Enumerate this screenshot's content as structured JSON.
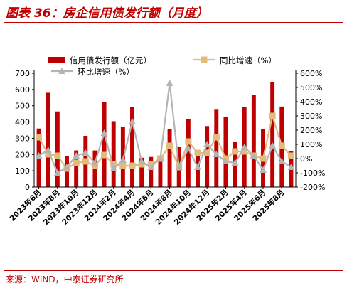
{
  "title": "图表 36：房企信用债发行额（月度）",
  "source": "来源：WIND，中泰证券研究所",
  "colors": {
    "bar": "#c00000",
    "yoy": "#e2bc7c",
    "mom": "#b4b4b4",
    "accent": "#c00000"
  },
  "chart_data": {
    "type": "bar",
    "categories": [
      "2023年6月",
      "2023年7月",
      "2023年8月",
      "2023年9月",
      "2023年10月",
      "2023年11月",
      "2023年12月",
      "2024年1月",
      "2024年2月",
      "2024年3月",
      "2024年4月",
      "2024年5月",
      "2024年6月",
      "2024年7月",
      "2024年8月",
      "2024年9月",
      "2024年10月",
      "2024年11月",
      "2024年12月",
      "2025年1月",
      "2025年2月",
      "2025年3月",
      "2025年4月",
      "2025年5月",
      "2025年6月",
      "2025年7月",
      "2025年8月",
      "2025年9月"
    ],
    "x_tick_labels": [
      "2023年6月",
      "2023年8月",
      "2023年10月",
      "2023年12月",
      "2024年2月",
      "2024年4月",
      "2024年6月",
      "2024年8月",
      "2024年10月",
      "2024年12月",
      "2025年2月",
      "2025年4月",
      "2025年6月",
      "2025年8月"
    ],
    "series": [
      {
        "name": "信用债发行额（亿元）",
        "type": "bar",
        "axis": "left",
        "values": [
          360,
          580,
          465,
          190,
          225,
          315,
          225,
          525,
          405,
          370,
          490,
          180,
          185,
          160,
          355,
          245,
          420,
          195,
          375,
          480,
          430,
          280,
          490,
          565,
          355,
          645,
          495,
          220
        ]
      },
      {
        "name": "同比增速（%）",
        "type": "line",
        "axis": "right",
        "values": [
          150,
          30,
          20,
          -70,
          -30,
          -20,
          -50,
          25,
          -40,
          -50,
          -50,
          -40,
          -40,
          0,
          90,
          -60,
          120,
          40,
          40,
          150,
          0,
          50,
          50,
          20,
          0,
          300,
          90,
          20
        ]
      },
      {
        "name": "环比增速（%）",
        "type": "line",
        "axis": "right",
        "values": [
          20,
          60,
          -100,
          -60,
          20,
          40,
          -30,
          180,
          -70,
          -10,
          260,
          -20,
          -60,
          0,
          530,
          -60,
          70,
          -60,
          100,
          30,
          -20,
          -30,
          80,
          20,
          -80,
          90,
          -20,
          -60
        ]
      }
    ],
    "ylim_left": [
      0,
      700
    ],
    "yticks_left": [
      "0",
      "100",
      "200",
      "300",
      "400",
      "500",
      "600",
      "700"
    ],
    "ylim_right": [
      -200,
      600
    ],
    "yticks_right": [
      "-200%",
      "-100%",
      "0%",
      "100%",
      "200%",
      "300%",
      "400%",
      "500%",
      "600%"
    ],
    "grid": false,
    "legend": "top"
  }
}
